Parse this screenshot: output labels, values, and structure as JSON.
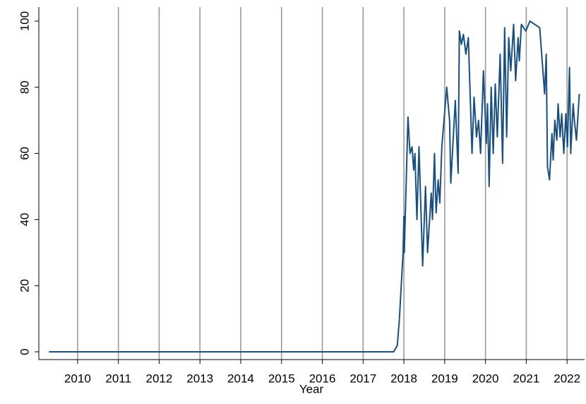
{
  "chart_data": {
    "type": "line",
    "x_label": "Year",
    "x": [
      2009.3,
      2017.75,
      2017.84,
      2017.89,
      2017.98,
      2018.0,
      2018.01,
      2018.1,
      2018.15,
      2018.2,
      2018.24,
      2018.27,
      2018.32,
      2018.37,
      2018.46,
      2018.53,
      2018.58,
      2018.67,
      2018.7,
      2018.75,
      2018.79,
      2018.84,
      2018.88,
      2018.93,
      2019.05,
      2019.12,
      2019.15,
      2019.26,
      2019.33,
      2019.36,
      2019.41,
      2019.46,
      2019.52,
      2019.58,
      2019.67,
      2019.72,
      2019.78,
      2019.83,
      2019.88,
      2019.95,
      2020.02,
      2020.05,
      2020.09,
      2020.14,
      2020.19,
      2020.24,
      2020.29,
      2020.36,
      2020.42,
      2020.47,
      2020.52,
      2020.57,
      2020.62,
      2020.69,
      2020.74,
      2020.8,
      2020.83,
      2020.88,
      2020.99,
      2021.09,
      2021.21,
      2021.33,
      2021.45,
      2021.49,
      2021.52,
      2021.57,
      2021.63,
      2021.66,
      2021.7,
      2021.75,
      2021.78,
      2021.83,
      2021.87,
      2021.92,
      2021.97,
      2022.01,
      2022.06,
      2022.09,
      2022.15,
      2022.18,
      2022.23,
      2022.3
    ],
    "series": [
      {
        "color": "#1a4f7e",
        "values": [
          0,
          0,
          2,
          10,
          30,
          41,
          30,
          71,
          60,
          62,
          55,
          60,
          40,
          62,
          26,
          50,
          30,
          48,
          40,
          60,
          42,
          52,
          45,
          62,
          80,
          70,
          51,
          76,
          54,
          97,
          93,
          96,
          90,
          95,
          60,
          77,
          65,
          70,
          60,
          85,
          63,
          75,
          50,
          80,
          60,
          81,
          65,
          90,
          57,
          98,
          65,
          95,
          85,
          99,
          82,
          95,
          88,
          99,
          97,
          100,
          99,
          98,
          78,
          90,
          56,
          52,
          66,
          58,
          70,
          64,
          75,
          65,
          72,
          60,
          72,
          62,
          86,
          60,
          75,
          70,
          64,
          78
        ]
      }
    ],
    "xlim": [
      2009.05,
      2022.43
    ],
    "xticks": [
      2010,
      2011,
      2012,
      2013,
      2014,
      2015,
      2016,
      2017,
      2018,
      2019,
      2020,
      2021,
      2022
    ],
    "ylim": [
      -2.35,
      104.26
    ],
    "yticks": [
      0,
      20,
      40,
      60,
      80,
      100
    ],
    "x_grid": true
  }
}
